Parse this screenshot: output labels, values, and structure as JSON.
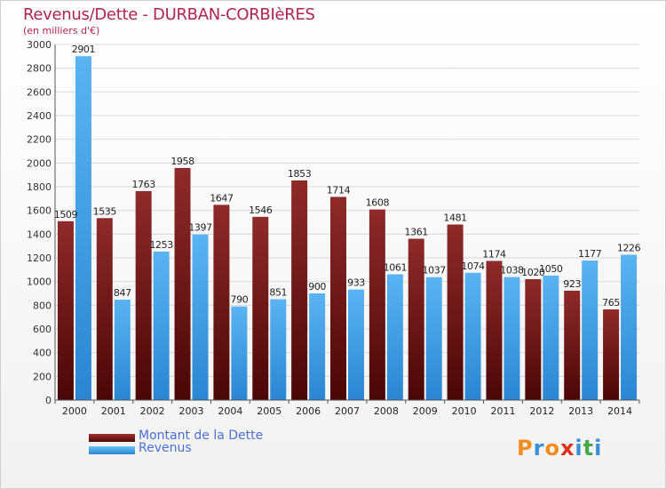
{
  "header": {
    "title": "Revenus/Dette - DURBAN-CORBIèRES",
    "subtitle": "(en milliers d'€)"
  },
  "legend": {
    "dette_label": "Montant de la Dette",
    "revenus_label": "Revenus"
  },
  "logo": {
    "text": "Proxiti"
  },
  "colors": {
    "dette": "#7a1a1a",
    "revenus": "#3e9ee6",
    "title": "#b0244c"
  },
  "chart_data": {
    "type": "bar",
    "title": "Revenus/Dette - DURBAN-CORBIèRES",
    "subtitle": "(en milliers d'€)",
    "categories": [
      "2000",
      "2001",
      "2002",
      "2003",
      "2004",
      "2005",
      "2006",
      "2007",
      "2008",
      "2009",
      "2010",
      "2011",
      "2012",
      "2013",
      "2014"
    ],
    "series": [
      {
        "name": "Montant de la Dette",
        "values": [
          1509,
          1535,
          1763,
          1958,
          1647,
          1546,
          1853,
          1714,
          1608,
          1361,
          1481,
          1174,
          1020,
          923,
          765
        ]
      },
      {
        "name": "Revenus",
        "values": [
          2901,
          847,
          1253,
          1397,
          790,
          851,
          900,
          933,
          1061,
          1037,
          1074,
          1038,
          1050,
          1177,
          1226
        ]
      }
    ],
    "ylim": [
      0,
      3000
    ],
    "yticks": [
      0,
      200,
      400,
      600,
      800,
      1000,
      1200,
      1400,
      1600,
      1800,
      2000,
      2200,
      2400,
      2600,
      2800,
      3000
    ],
    "grid": true,
    "legend_position": "bottom-left"
  }
}
